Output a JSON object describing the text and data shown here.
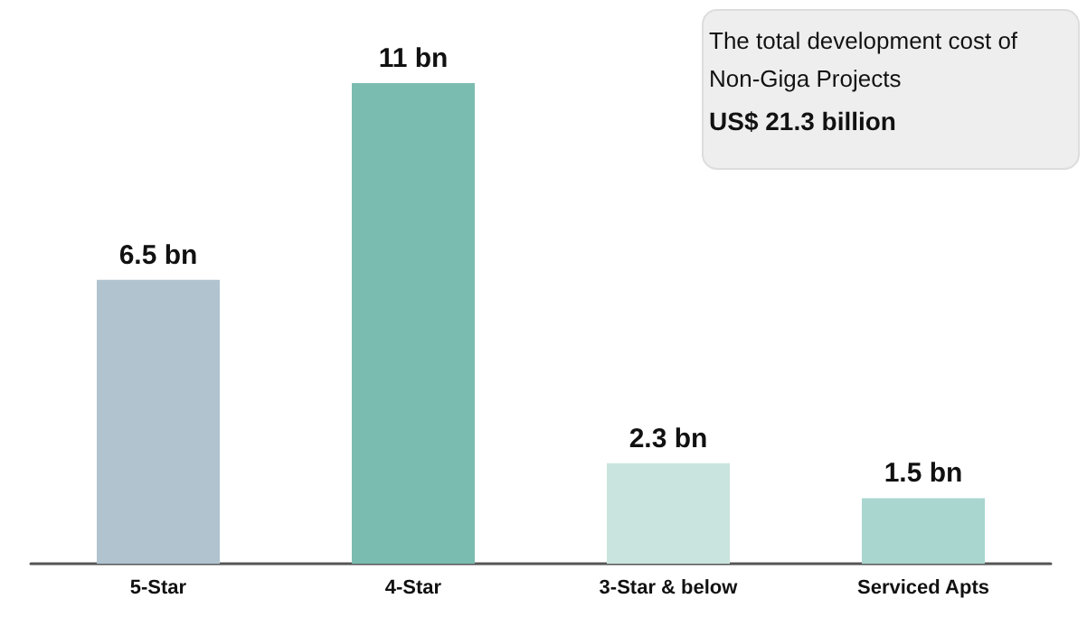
{
  "chart_data": {
    "type": "bar",
    "categories": [
      "5-Star",
      "4-Star",
      "3-Star & below",
      "Serviced Apts"
    ],
    "values": [
      6.5,
      11,
      2.3,
      1.5
    ],
    "value_labels": [
      "6.5 bn",
      "11 bn",
      "2.3 bn",
      "1.5 bn"
    ],
    "colors": [
      "#b0c3cf",
      "#7bbcb0",
      "#c9e4de",
      "#a9d6cf"
    ],
    "annotations": [
      "The total development cost of Non-Giga Projects",
      "US$ 21.3 billion"
    ]
  }
}
